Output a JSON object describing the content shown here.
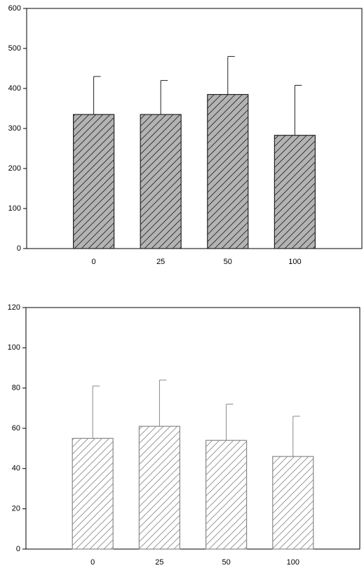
{
  "chart_data": [
    {
      "type": "bar",
      "categories": [
        "0",
        "25",
        "50",
        "100"
      ],
      "values": [
        335,
        335,
        385,
        283
      ],
      "errors": [
        95,
        85,
        95,
        125
      ],
      "color": "#b3b3b3",
      "edge_color": "#222222",
      "hatch": "/",
      "ylim": [
        0,
        600
      ],
      "yticks": [
        0,
        100,
        200,
        300,
        400,
        500,
        600
      ]
    },
    {
      "type": "bar",
      "categories": [
        "0",
        "25",
        "50",
        "100"
      ],
      "values": [
        55,
        61,
        54,
        46
      ],
      "errors": [
        26,
        23,
        18,
        20
      ],
      "color": "#ffffff",
      "edge_color": "#888888",
      "hatch": "/",
      "ylim": [
        0,
        120
      ],
      "yticks": [
        0,
        20,
        40,
        60,
        80,
        100,
        120
      ]
    }
  ]
}
